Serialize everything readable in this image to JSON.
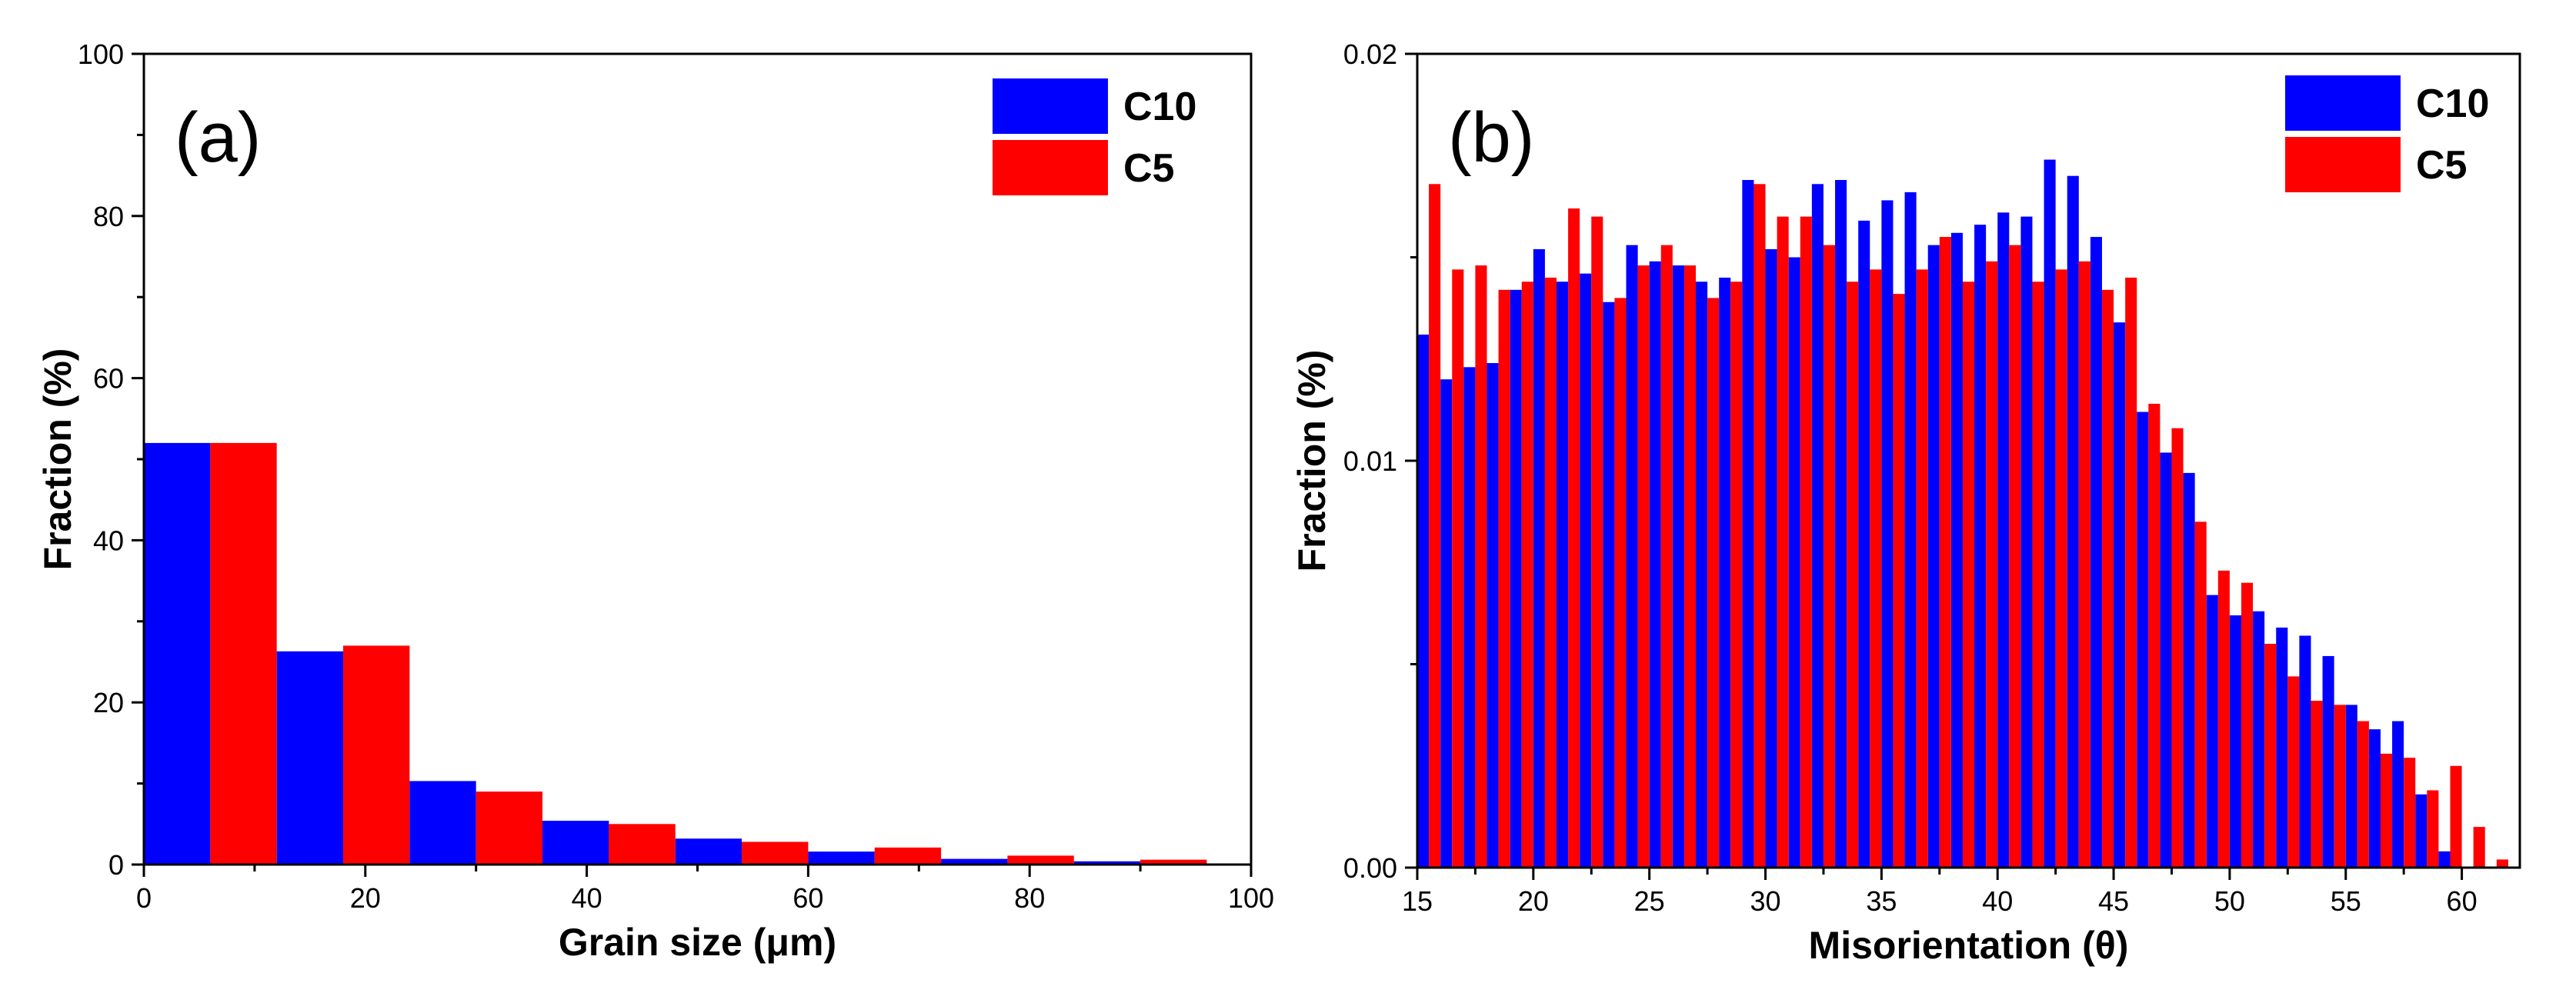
{
  "chart_data": [
    {
      "type": "bar",
      "panel_label": "(a)",
      "title": "",
      "xlabel": "Grain size (μm)",
      "ylabel": "Fraction (%)",
      "xlim": [
        0,
        100
      ],
      "ylim": [
        0,
        100
      ],
      "x_ticks": [
        0,
        20,
        40,
        60,
        80,
        100
      ],
      "y_ticks": [
        0,
        20,
        40,
        60,
        80,
        100
      ],
      "x_tick_labels": [
        "0",
        "20",
        "40",
        "60",
        "80",
        "100"
      ],
      "y_tick_labels": [
        "0",
        "20",
        "40",
        "60",
        "80",
        "100"
      ],
      "bin_width": 12,
      "bin_centers": [
        6,
        18,
        30,
        42,
        54,
        66,
        78,
        90
      ],
      "grid": false,
      "legend_position": "top-right",
      "series": [
        {
          "name": "C10",
          "color": "#0000FF",
          "values": [
            52.0,
            26.3,
            10.3,
            5.4,
            3.2,
            1.6,
            0.7,
            0.4
          ]
        },
        {
          "name": "C5",
          "color": "#FF0000",
          "values": [
            52.0,
            27.0,
            9.0,
            5.0,
            2.8,
            2.1,
            1.1,
            0.6
          ]
        }
      ]
    },
    {
      "type": "bar",
      "panel_label": "(b)",
      "title": "",
      "xlabel": "Misorientation (θ)",
      "ylabel": "Fraction (%)",
      "xlim": [
        15,
        62.5
      ],
      "ylim": [
        0,
        0.02
      ],
      "x_ticks": [
        15,
        20,
        25,
        30,
        35,
        40,
        45,
        50,
        55,
        60
      ],
      "y_ticks": [
        0,
        0.01,
        0.02
      ],
      "x_tick_labels": [
        "15",
        "20",
        "25",
        "30",
        "35",
        "40",
        "45",
        "50",
        "55",
        "60"
      ],
      "y_tick_labels": [
        "0.00",
        "0.01",
        "0.02"
      ],
      "bin_width": 1,
      "bin_starts": [
        15,
        16,
        17,
        18,
        19,
        20,
        21,
        22,
        23,
        24,
        25,
        26,
        27,
        28,
        29,
        30,
        31,
        32,
        33,
        34,
        35,
        36,
        37,
        38,
        39,
        40,
        41,
        42,
        43,
        44,
        45,
        46,
        47,
        48,
        49,
        50,
        51,
        52,
        53,
        54,
        55,
        56,
        57,
        58,
        59,
        60,
        61
      ],
      "grid": false,
      "legend_position": "top-right",
      "series": [
        {
          "name": "C10",
          "color": "#0000FF",
          "values": [
            0.0131,
            0.012,
            0.0123,
            0.0124,
            0.0142,
            0.0152,
            0.0144,
            0.0146,
            0.0139,
            0.0153,
            0.0149,
            0.0148,
            0.0144,
            0.0145,
            0.0169,
            0.0152,
            0.015,
            0.0168,
            0.0169,
            0.0159,
            0.0164,
            0.0166,
            0.0153,
            0.0156,
            0.0158,
            0.0161,
            0.016,
            0.0174,
            0.017,
            0.0155,
            0.0134,
            0.0112,
            0.0102,
            0.0097,
            0.0067,
            0.0062,
            0.0063,
            0.0059,
            0.0057,
            0.0052,
            0.004,
            0.0034,
            0.0036,
            0.0018,
            0.0004,
            0.0,
            0.0
          ]
        },
        {
          "name": "C5",
          "color": "#FF0000",
          "values": [
            0.0168,
            0.0147,
            0.0148,
            0.0142,
            0.0144,
            0.0145,
            0.0162,
            0.016,
            0.014,
            0.0148,
            0.0153,
            0.0148,
            0.014,
            0.0144,
            0.0168,
            0.016,
            0.016,
            0.0153,
            0.0144,
            0.0147,
            0.0141,
            0.0147,
            0.0155,
            0.0144,
            0.0149,
            0.0153,
            0.0144,
            0.0147,
            0.0149,
            0.0142,
            0.0145,
            0.0114,
            0.0108,
            0.0085,
            0.0073,
            0.007,
            0.0055,
            0.0047,
            0.0041,
            0.004,
            0.0036,
            0.0028,
            0.0027,
            0.0019,
            0.0025,
            0.001,
            0.0002
          ]
        }
      ]
    }
  ]
}
